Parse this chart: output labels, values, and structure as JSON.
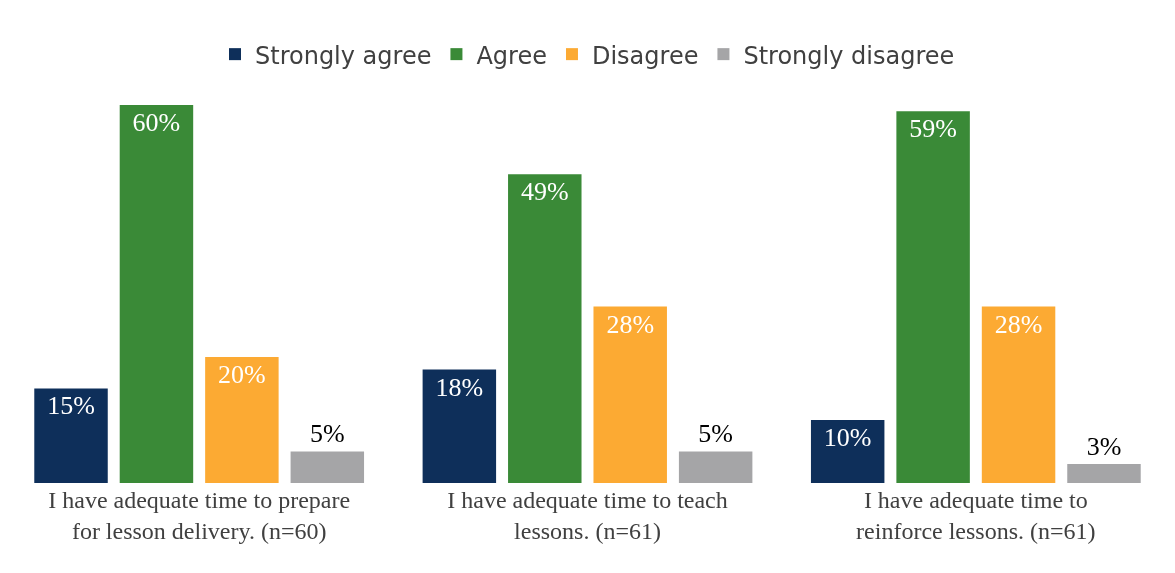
{
  "chart_data": {
    "type": "bar",
    "categories": [
      "I have adequate time to prepare for lesson delivery. (n=60)",
      "I have adequate time to teach lessons. (n=61)",
      "I have adequate time to reinforce lessons. (n=61)"
    ],
    "series": [
      {
        "name": "Strongly agree",
        "color": "#0e2f5a",
        "values": [
          15,
          18,
          10
        ],
        "value_labels": [
          "15%",
          "18%",
          "10%"
        ]
      },
      {
        "name": "Agree",
        "color": "#3a8a37",
        "values": [
          60,
          49,
          59
        ],
        "value_labels": [
          "60%",
          "49%",
          "59%"
        ]
      },
      {
        "name": "Disagree",
        "color": "#fcaa33",
        "values": [
          20,
          28,
          28
        ],
        "value_labels": [
          "20%",
          "28%",
          "28%"
        ]
      },
      {
        "name": "Strongly disagree",
        "color": "#a5a5a7",
        "values": [
          5,
          5,
          3
        ],
        "value_labels": [
          "5%",
          "5%",
          "3%"
        ]
      }
    ],
    "legend": "top",
    "grid": false
  }
}
